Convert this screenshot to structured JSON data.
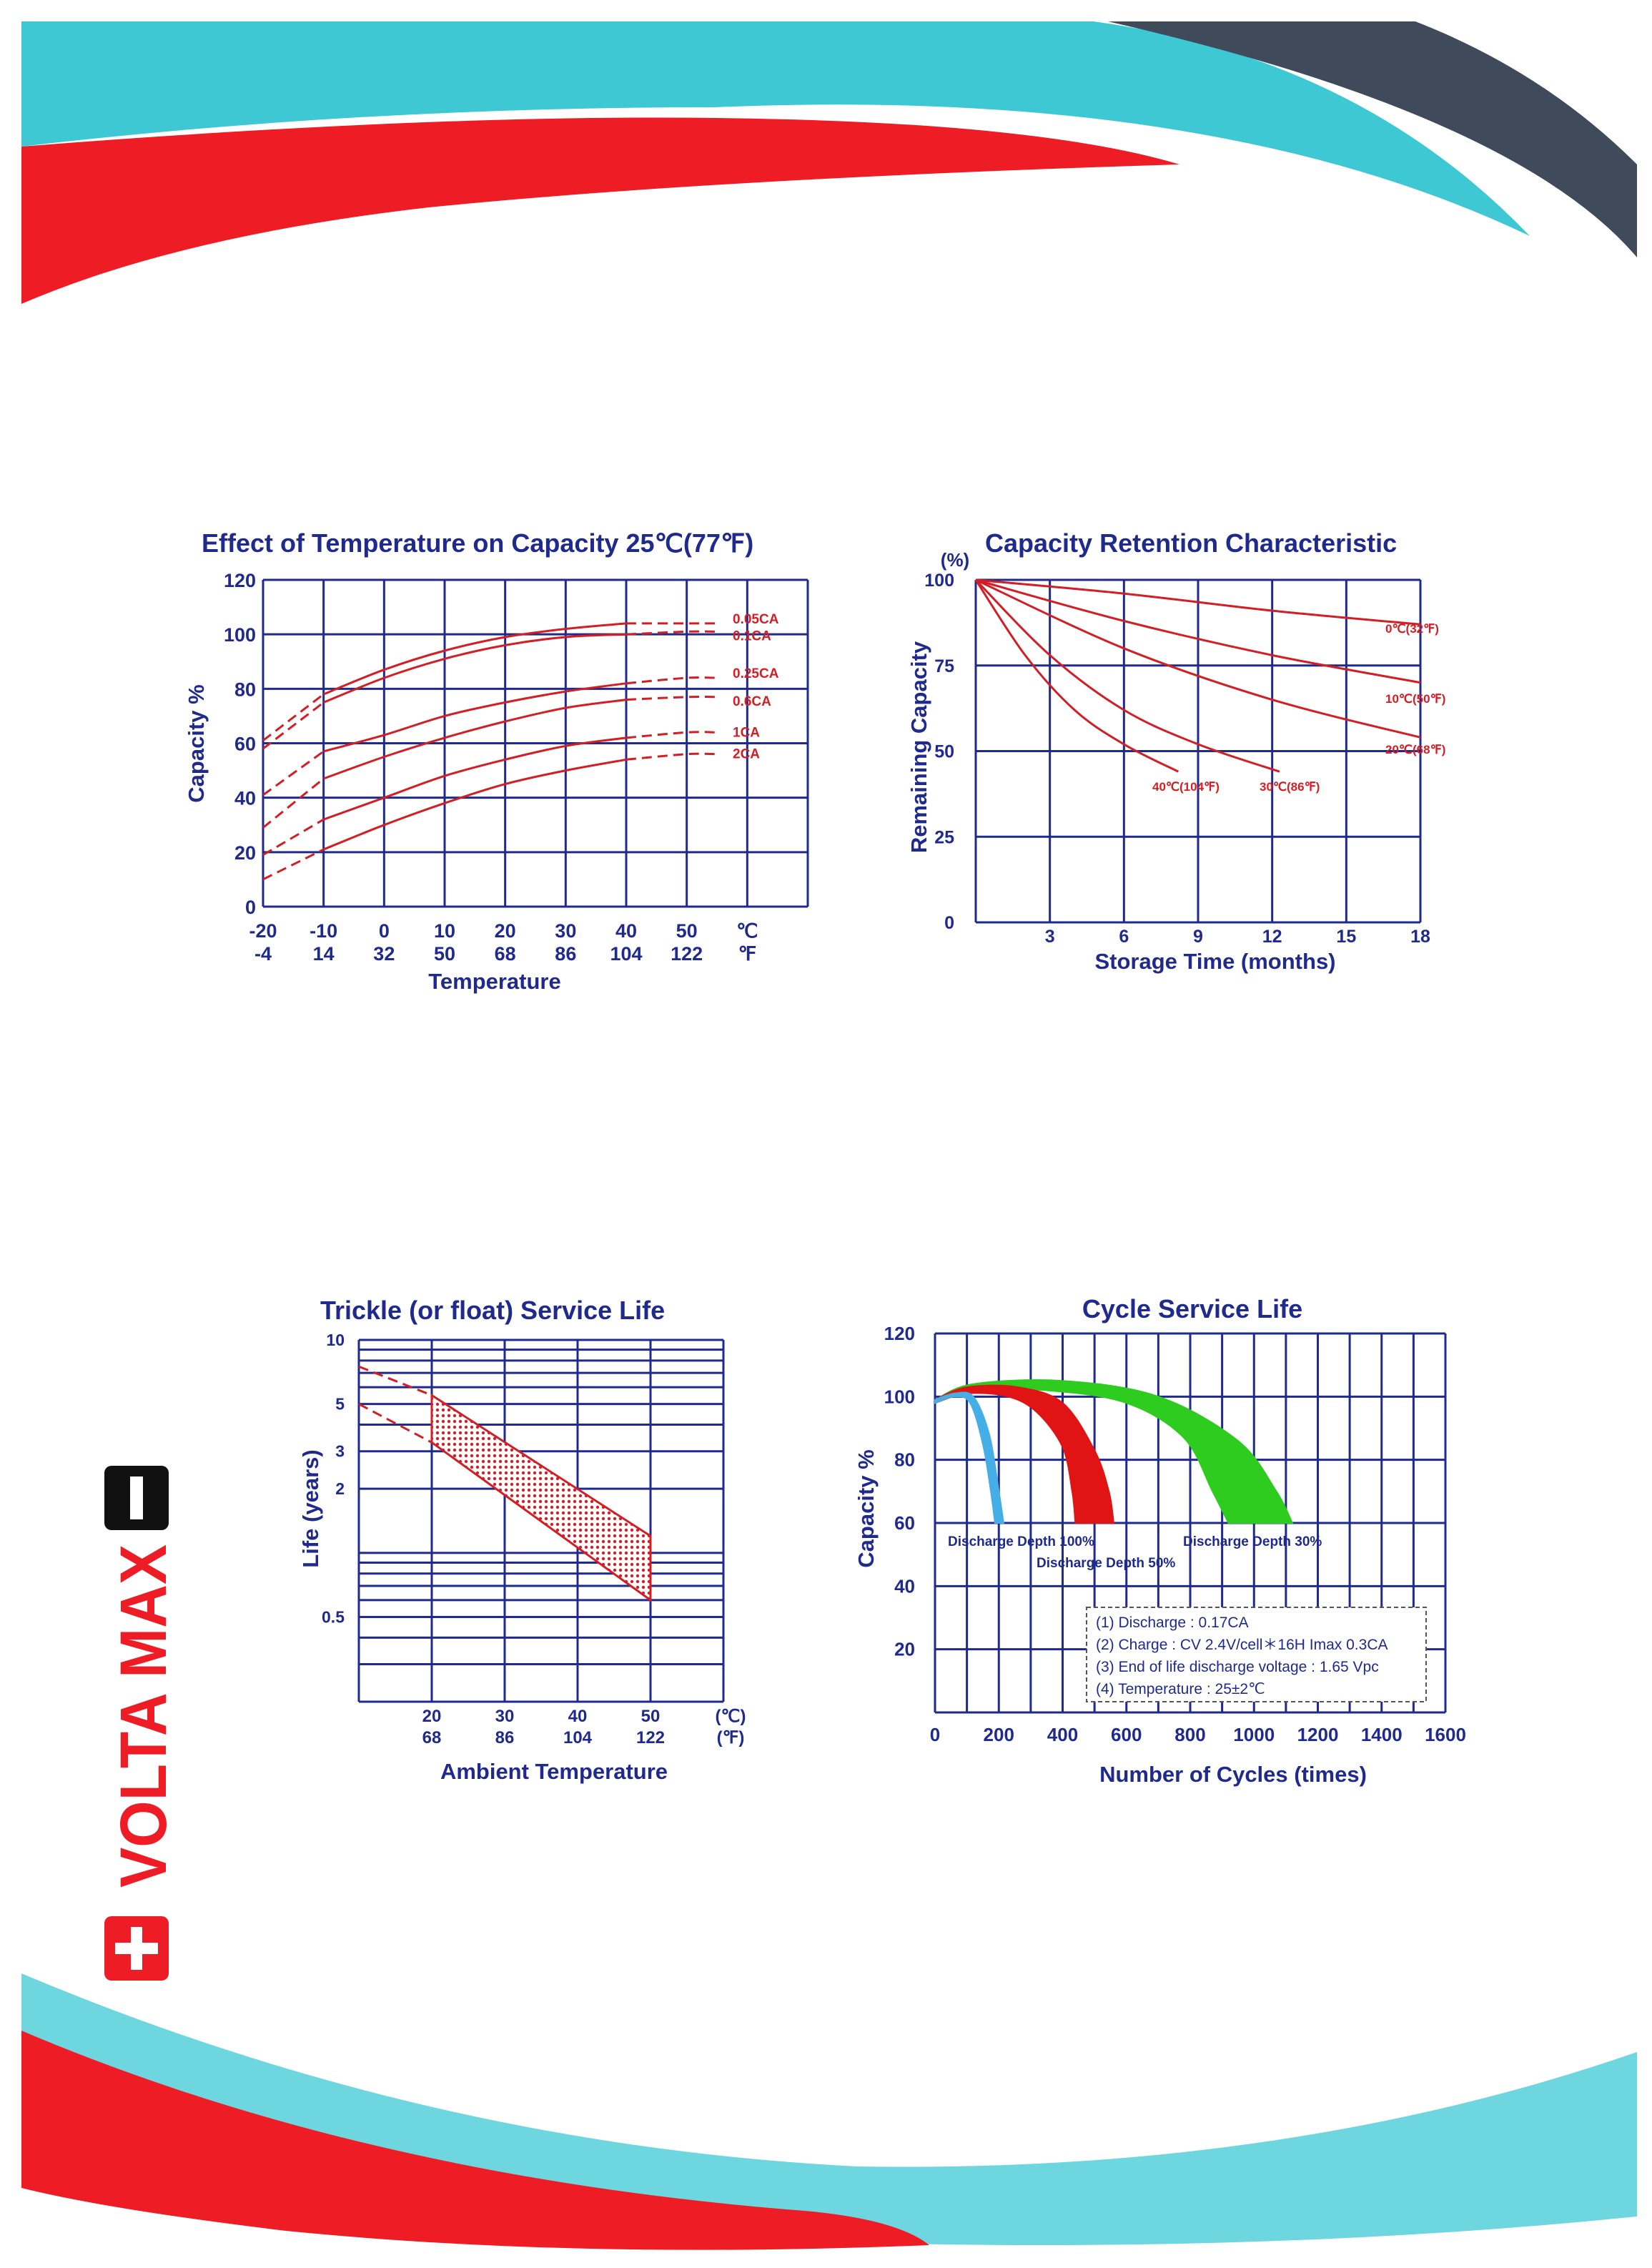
{
  "brand": {
    "logo_text": "VOLTA MAX",
    "colors": {
      "red": "#ee1c25",
      "cyan": "#3ec8d4",
      "slate": "#3f4a5a",
      "navy": "#1f2a8c",
      "curve_red": "#d21f26"
    }
  },
  "chart_data": [
    {
      "id": "temp_capacity",
      "type": "line",
      "title": "Effect of Temperature on Capacity  25℃(77℉)",
      "xlabel": "Temperature",
      "ylabel": "Capacity %",
      "x_ticks_c": [
        "-20",
        "-10",
        "0",
        "10",
        "20",
        "30",
        "40",
        "50"
      ],
      "x_ticks_f": [
        "-4",
        "14",
        "32",
        "50",
        "68",
        "86",
        "104",
        "122"
      ],
      "x_unit_c": "℃",
      "x_unit_f": "℉",
      "xlim": [
        -20,
        70
      ],
      "ylim": [
        0,
        120
      ],
      "y_ticks": [
        "0",
        "20",
        "40",
        "60",
        "80",
        "100",
        "120"
      ],
      "grid": true,
      "series": [
        {
          "name": "0.05CA",
          "x": [
            -20,
            -10,
            0,
            10,
            20,
            30,
            40,
            50,
            55
          ],
          "values": [
            61,
            78,
            87,
            94,
            99,
            102,
            104,
            104,
            104
          ]
        },
        {
          "name": "0.1CA",
          "x": [
            -20,
            -10,
            0,
            10,
            20,
            30,
            40,
            50,
            55
          ],
          "values": [
            58,
            75,
            84,
            91,
            96,
            99,
            100,
            101,
            101
          ]
        },
        {
          "name": "0.25CA",
          "x": [
            -20,
            -10,
            0,
            10,
            20,
            30,
            40,
            50,
            55
          ],
          "values": [
            41,
            57,
            63,
            70,
            75,
            79,
            82,
            84,
            84
          ]
        },
        {
          "name": "0.6CA",
          "x": [
            -20,
            -10,
            0,
            10,
            20,
            30,
            40,
            50,
            55
          ],
          "values": [
            29,
            47,
            55,
            62,
            68,
            73,
            76,
            77,
            77
          ]
        },
        {
          "name": "1CA",
          "x": [
            -20,
            -10,
            0,
            10,
            20,
            30,
            40,
            50,
            55
          ],
          "values": [
            19,
            32,
            40,
            48,
            54,
            59,
            62,
            64,
            64
          ]
        },
        {
          "name": "2CA",
          "x": [
            -20,
            -10,
            0,
            10,
            20,
            30,
            40,
            50,
            55
          ],
          "values": [
            10,
            21,
            30,
            38,
            45,
            50,
            54,
            56,
            56
          ]
        }
      ]
    },
    {
      "id": "retention",
      "type": "line",
      "title": "Capacity Retention Characteristic",
      "xlabel": "Storage Time (months)",
      "ylabel": "Remaining Capacity",
      "y_unit": "(%)",
      "xlim": [
        0,
        18
      ],
      "ylim": [
        0,
        100
      ],
      "x_ticks": [
        "3",
        "6",
        "9",
        "12",
        "15",
        "18"
      ],
      "y_ticks": [
        "0",
        "25",
        "50",
        "75",
        "100"
      ],
      "grid": true,
      "series": [
        {
          "name": "0℃(32℉)",
          "x": [
            0,
            6,
            12,
            18
          ],
          "values": [
            100,
            96,
            91,
            87
          ]
        },
        {
          "name": "10℃(50℉)",
          "x": [
            0,
            6,
            12,
            18
          ],
          "values": [
            100,
            88,
            78,
            70
          ]
        },
        {
          "name": "20℃(68℉)",
          "x": [
            0,
            6,
            12,
            18
          ],
          "values": [
            100,
            80,
            65,
            54
          ]
        },
        {
          "name": "30℃(86℉)",
          "x": [
            0,
            3,
            6,
            9,
            12.3
          ],
          "values": [
            100,
            78,
            62,
            52,
            44
          ]
        },
        {
          "name": "40℃(104℉)",
          "x": [
            0,
            2,
            4,
            6,
            8.2
          ],
          "values": [
            100,
            78,
            62,
            52,
            44
          ]
        }
      ]
    },
    {
      "id": "float_life",
      "type": "area",
      "title": "Trickle (or float) Service Life",
      "xlabel": "Ambient Temperature",
      "ylabel": "Life (years)",
      "x_ticks_c": [
        "20",
        "30",
        "40",
        "50"
      ],
      "x_ticks_f": [
        "68",
        "86",
        "104",
        "122"
      ],
      "x_unit_c": "(℃)",
      "x_unit_f": "(℉)",
      "xlim": [
        10,
        60
      ],
      "y_scale": "log",
      "y_ticks": [
        "0.5",
        "2",
        "3",
        "5",
        "10"
      ],
      "grid": true,
      "band": {
        "x": [
          20,
          50
        ],
        "upper": [
          5.5,
          1.2
        ],
        "lower": [
          3.3,
          0.6
        ]
      },
      "extrapolation": {
        "x": [
          10,
          20
        ],
        "upper": [
          7.5,
          5.5
        ],
        "lower": [
          5.0,
          3.3
        ]
      }
    },
    {
      "id": "cycle_life",
      "type": "area",
      "title": "Cycle Service Life",
      "xlabel": "Number of Cycles (times)",
      "ylabel": "Capacity %",
      "xlim": [
        0,
        1600
      ],
      "ylim": [
        0,
        120
      ],
      "x_ticks": [
        "0",
        "200",
        "400",
        "600",
        "800",
        "1000",
        "1200",
        "1400",
        "1600"
      ],
      "y_ticks": [
        "20",
        "40",
        "60",
        "80",
        "100",
        "120"
      ],
      "grid": true,
      "series": [
        {
          "name": "Discharge Depth 100%",
          "color": "#45aee6",
          "upper": [
            [
              0,
              99
            ],
            [
              60,
              101
            ],
            [
              120,
              100
            ],
            [
              170,
              88
            ],
            [
              200,
              70
            ],
            [
              215,
              60
            ]
          ],
          "lower": [
            [
              0,
              98
            ],
            [
              60,
              100
            ],
            [
              110,
              98
            ],
            [
              150,
              85
            ],
            [
              175,
              70
            ],
            [
              188,
              60
            ]
          ]
        },
        {
          "name": "Discharge Depth 50%",
          "color": "#e01414",
          "upper": [
            [
              0,
              99
            ],
            [
              100,
              103
            ],
            [
              260,
              103
            ],
            [
              400,
              98
            ],
            [
              500,
              83
            ],
            [
              545,
              70
            ],
            [
              560,
              60
            ]
          ],
          "lower": [
            [
              0,
              98
            ],
            [
              100,
              101
            ],
            [
              230,
              100
            ],
            [
              320,
              95
            ],
            [
              400,
              84
            ],
            [
              430,
              70
            ],
            [
              440,
              60
            ]
          ]
        },
        {
          "name": "Discharge Depth 30%",
          "color": "#2dcc1e",
          "upper": [
            [
              0,
              99
            ],
            [
              120,
              104
            ],
            [
              400,
              105
            ],
            [
              700,
              100
            ],
            [
              950,
              86
            ],
            [
              1070,
              70
            ],
            [
              1120,
              60
            ]
          ],
          "lower": [
            [
              0,
              98
            ],
            [
              120,
              102
            ],
            [
              350,
              102
            ],
            [
              600,
              98
            ],
            [
              780,
              87
            ],
            [
              870,
              70
            ],
            [
              920,
              60
            ]
          ]
        }
      ],
      "notes": [
        "(1) Discharge : 0.17CA",
        "(2) Charge : CV 2.4V/cell＊16H Imax 0.3CA",
        "(3) End of life discharge voltage : 1.65 Vpc",
        "(4) Temperature : 25±2℃"
      ]
    }
  ]
}
